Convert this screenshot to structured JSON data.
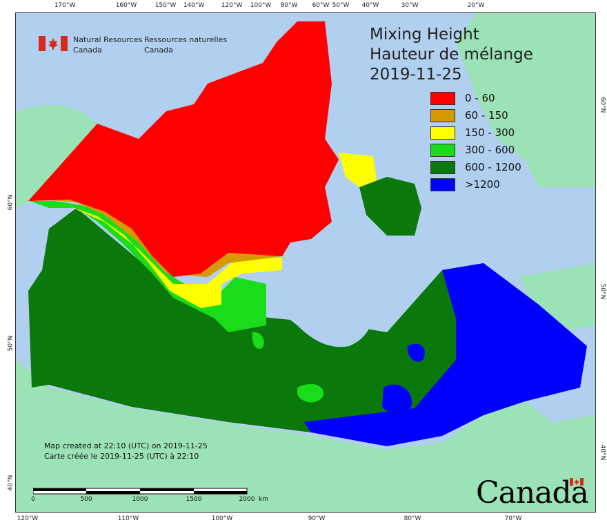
{
  "title": {
    "line_en": "Mixing Height",
    "line_fr": "Hauteur de mélange",
    "date": "2019-11-25"
  },
  "legend": [
    {
      "label": "0 - 60",
      "color": "#ff0000"
    },
    {
      "label": "60 - 150",
      "color": "#d69a00"
    },
    {
      "label": "150 - 300",
      "color": "#ffff00"
    },
    {
      "label": "300 - 600",
      "color": "#1adc1a"
    },
    {
      "label": "600 - 1200",
      "color": "#0b780b"
    },
    {
      "label": ">1200",
      "color": "#0000ff"
    }
  ],
  "agency": {
    "en_line1": "Natural Resources",
    "en_line2": "Canada",
    "fr_line1": "Ressources naturelles",
    "fr_line2": "Canada"
  },
  "credit": {
    "en": "Map created at 22:10 (UTC) on 2019-11-25",
    "fr": "Carte créée le 2019-11-25 (UTC) à 22:10"
  },
  "scalebar": {
    "labels": [
      "0",
      "500",
      "1000",
      "1500",
      "2000"
    ],
    "unit": "km"
  },
  "wordmark": "Canada",
  "graticule": {
    "top": [
      "170°W",
      "160°W",
      "150°W",
      "140°W",
      "120°W",
      "100°W",
      "80°W",
      "60°W",
      "50°W",
      "40°W",
      "30°W",
      "20°W"
    ],
    "bottom": [
      "120°W",
      "110°W",
      "100°W",
      "90°W",
      "80°W",
      "70°W"
    ],
    "left": [
      "60°N",
      "50°N",
      "40°N"
    ],
    "right": [
      "60°N",
      "50°N",
      "40°N"
    ]
  },
  "colors": {
    "ocean": "#b1d0ef",
    "land_outside": "#9be3b6"
  }
}
